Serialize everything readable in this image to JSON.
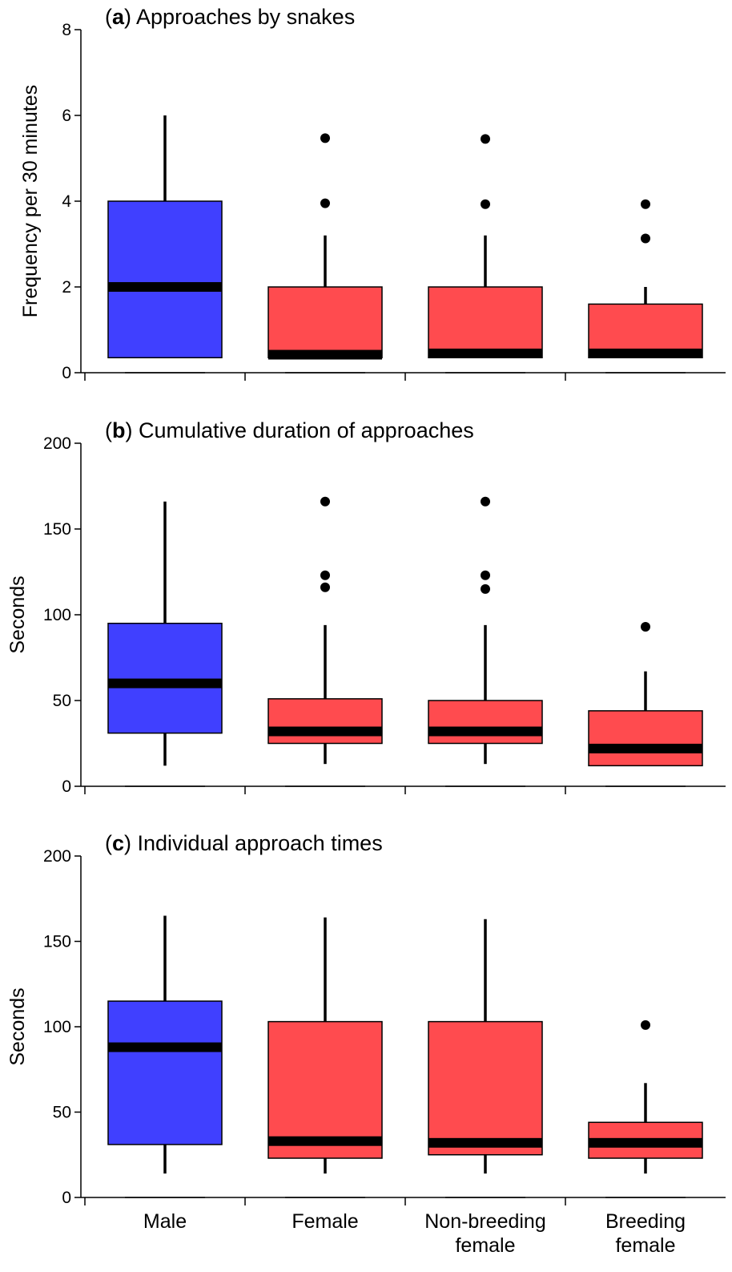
{
  "chart_data": [
    {
      "type": "box",
      "title_letter": "a",
      "title_rest": "Approaches by snakes",
      "ylabel": "Frequency per 30 minutes",
      "ylim": [
        0,
        8
      ],
      "yticks": [
        "0",
        "2",
        "4",
        "6",
        "8"
      ],
      "categories": [
        "Male",
        "Female",
        "Non-breeding female",
        "Breeding female"
      ],
      "series": [
        {
          "name": "Male",
          "color": "#4040ff",
          "whisker_low": 0.35,
          "q1": 0.35,
          "median": 2.0,
          "q3": 4.0,
          "whisker_high": 6.0,
          "outliers": []
        },
        {
          "name": "Female",
          "color": "#ff4b4f",
          "whisker_low": 0.35,
          "q1": 0.35,
          "median": 0.42,
          "q3": 2.0,
          "whisker_high": 3.2,
          "outliers": [
            5.47,
            3.95
          ]
        },
        {
          "name": "Non-breeding female",
          "color": "#ff4b4f",
          "whisker_low": 0.35,
          "q1": 0.35,
          "median": 0.45,
          "q3": 2.0,
          "whisker_high": 3.2,
          "outliers": [
            5.45,
            3.93
          ]
        },
        {
          "name": "Breeding female",
          "color": "#ff4b4f",
          "whisker_low": 0.35,
          "q1": 0.35,
          "median": 0.45,
          "q3": 1.6,
          "whisker_high": 2.0,
          "outliers": [
            3.93,
            3.13
          ]
        }
      ]
    },
    {
      "type": "box",
      "title_letter": "b",
      "title_rest": "Cumulative duration of approaches",
      "ylabel": "Seconds",
      "ylim": [
        0,
        200
      ],
      "yticks": [
        "0",
        "50",
        "100",
        "150",
        "200"
      ],
      "categories": [
        "Male",
        "Female",
        "Non-breeding female",
        "Breeding female"
      ],
      "series": [
        {
          "name": "Male",
          "color": "#4040ff",
          "whisker_low": 12,
          "q1": 31,
          "median": 60,
          "q3": 95,
          "whisker_high": 166,
          "outliers": []
        },
        {
          "name": "Female",
          "color": "#ff4b4f",
          "whisker_low": 13,
          "q1": 25,
          "median": 32,
          "q3": 51,
          "whisker_high": 94,
          "outliers": [
            166,
            123,
            116
          ]
        },
        {
          "name": "Non-breeding female",
          "color": "#ff4b4f",
          "whisker_low": 13,
          "q1": 25,
          "median": 32,
          "q3": 50,
          "whisker_high": 94,
          "outliers": [
            166,
            123,
            115
          ]
        },
        {
          "name": "Breeding female",
          "color": "#ff4b4f",
          "whisker_low": 12,
          "q1": 12,
          "median": 22,
          "q3": 44,
          "whisker_high": 67,
          "outliers": [
            93
          ]
        }
      ]
    },
    {
      "type": "box",
      "title_letter": "c",
      "title_rest": "Individual approach times",
      "ylabel": "Seconds",
      "ylim": [
        0,
        200
      ],
      "yticks": [
        "0",
        "50",
        "100",
        "150",
        "200"
      ],
      "categories": [
        "Male",
        "Female",
        "Non-breeding female",
        "Breeding female"
      ],
      "category_lines": [
        [
          "Male"
        ],
        [
          "Female"
        ],
        [
          "Non-breeding",
          "female"
        ],
        [
          "Breeding",
          "female"
        ]
      ],
      "series": [
        {
          "name": "Male",
          "color": "#4040ff",
          "whisker_low": 14,
          "q1": 31,
          "median": 88,
          "q3": 115,
          "whisker_high": 165,
          "outliers": []
        },
        {
          "name": "Female",
          "color": "#ff4b4f",
          "whisker_low": 14,
          "q1": 23,
          "median": 33,
          "q3": 103,
          "whisker_high": 164,
          "outliers": []
        },
        {
          "name": "Non-breeding female",
          "color": "#ff4b4f",
          "whisker_low": 14,
          "q1": 25,
          "median": 32,
          "q3": 103,
          "whisker_high": 163,
          "outliers": []
        },
        {
          "name": "Breeding female",
          "color": "#ff4b4f",
          "whisker_low": 14,
          "q1": 23,
          "median": 32,
          "q3": 44,
          "whisker_high": 67,
          "outliers": [
            101
          ]
        }
      ]
    }
  ]
}
